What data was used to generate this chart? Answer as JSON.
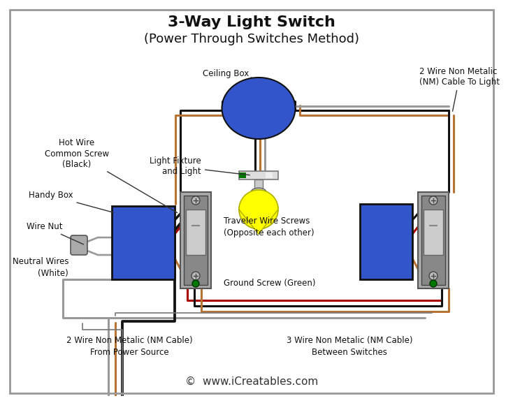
{
  "title_line1": "3-Way Light Switch",
  "title_line2": "(Power Through Switches Method)",
  "copyright_text": "©  www.iCreatables.com",
  "bg_color": "#ffffff",
  "border_color": "#888888",
  "colors": {
    "black": "#111111",
    "white": "#ffffff",
    "red": "#aa0000",
    "copper": "#b87333",
    "blue_box": "#3355cc",
    "gray_sw": "#aaaaaa",
    "green": "#007700",
    "yellow": "#ffff00",
    "dark_gray": "#666666",
    "wire_gray": "#999999",
    "light_gray": "#cccccc",
    "off_white": "#f5f5f5"
  },
  "labels": {
    "ceiling_box": "Ceiling Box",
    "nm_cable_light": "2 Wire Non Metalic\n(NM) Cable To Light",
    "hot_wire": "Hot Wire\nCommon Screw\n(Black)",
    "light_fixture": "Light Fixture\nand Light",
    "handy_box": "Handy Box",
    "wire_nut": "Wire Nut",
    "neutral_wires": "Neutral Wires\n(White)",
    "traveler_screws": "Traveler Wire Screws\n(Opposite each other)",
    "ground_screw": "Ground Screw (Green)",
    "nm_cable_power": "2 Wire Non Metalic (NM Cable)\nFrom Power Source",
    "nm_cable_switches": "3 Wire Non Metalic (NM Cable)\nBetween Switches"
  }
}
